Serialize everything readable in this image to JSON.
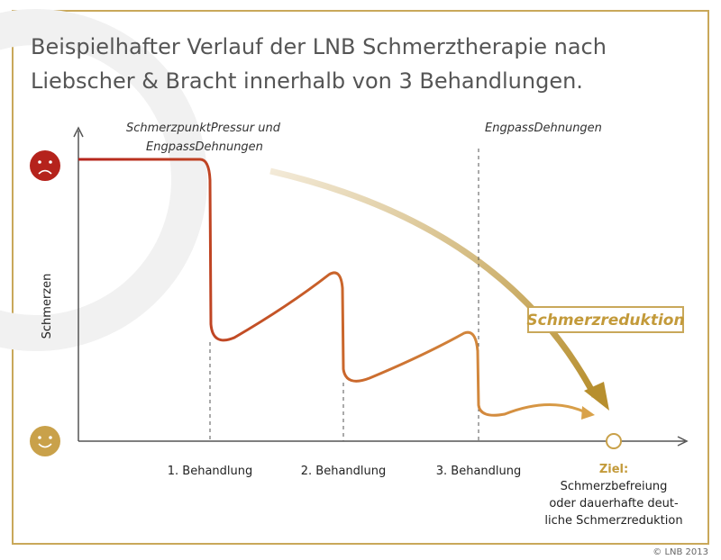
{
  "header": {
    "title": [
      "Beispielhafter Verlauf der LNB Schmerztherapie nach",
      "Liebscher & Bracht innerhalb von 3 Behandlungen."
    ]
  },
  "annotations": {
    "first": [
      "SchmerzpunktPressur und",
      "EngpassDehnungen"
    ],
    "third": "EngpassDehnungen"
  },
  "axis_label": "Schmerzen",
  "trend_label": "Schmerzreduktion",
  "steps": [
    "1. Behandlung",
    "2. Behandlung",
    "3. Behandlung"
  ],
  "goal": {
    "heading": "Ziel:",
    "text": [
      "Schmerzbefreiung",
      "oder dauerhafte deut-",
      "liche Schmerzreduktion"
    ]
  },
  "copyright": "© LNB 2013"
}
